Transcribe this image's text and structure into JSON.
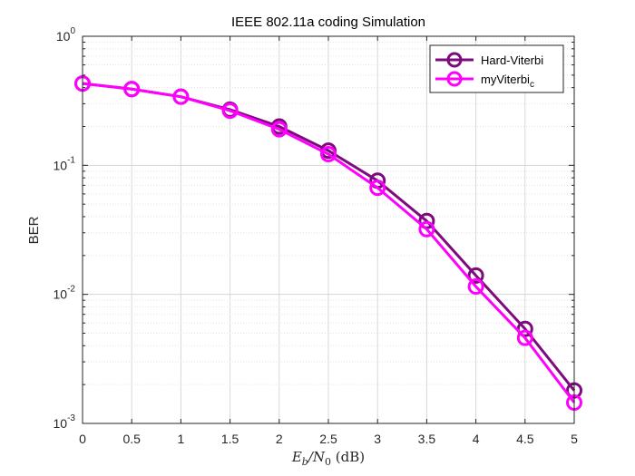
{
  "chart_data": {
    "type": "line",
    "title": "IEEE 802.11a coding Simulation",
    "xlabel": {
      "prefix": "E",
      "prefix_sub": "b",
      "slash": "/N",
      "slash_sub": "0",
      "unit": " (dB)"
    },
    "ylabel": "BER",
    "x_scale": "linear",
    "y_scale": "log",
    "xlim": [
      0,
      5
    ],
    "ylim": [
      0.001,
      1
    ],
    "x_ticks": [
      "0",
      "0.5",
      "1",
      "1.5",
      "2",
      "2.5",
      "3",
      "3.5",
      "4",
      "4.5",
      "5"
    ],
    "y_ticks": [
      {
        "base": "10",
        "exp": "-3",
        "value": 0.001
      },
      {
        "base": "10",
        "exp": "-2",
        "value": 0.01
      },
      {
        "base": "10",
        "exp": "-1",
        "value": 0.1
      },
      {
        "base": "10",
        "exp": "0",
        "value": 1
      }
    ],
    "grid": true,
    "minor_grid": true,
    "legend_position": "top-right",
    "x": [
      0,
      0.5,
      1,
      1.5,
      2,
      2.5,
      3,
      3.5,
      4,
      4.5,
      5
    ],
    "series": [
      {
        "name": "Hard-Viterbi",
        "color": "#7e0b7e",
        "values": [
          0.43,
          0.39,
          0.34,
          0.27,
          0.2,
          0.13,
          0.076,
          0.037,
          0.014,
          0.0054,
          0.0018
        ]
      },
      {
        "name": "myViterbi",
        "name_sub": "c",
        "color": "#ff00ff",
        "values": [
          0.43,
          0.39,
          0.34,
          0.265,
          0.19,
          0.122,
          0.067,
          0.032,
          0.0115,
          0.0046,
          0.00145
        ]
      }
    ]
  }
}
